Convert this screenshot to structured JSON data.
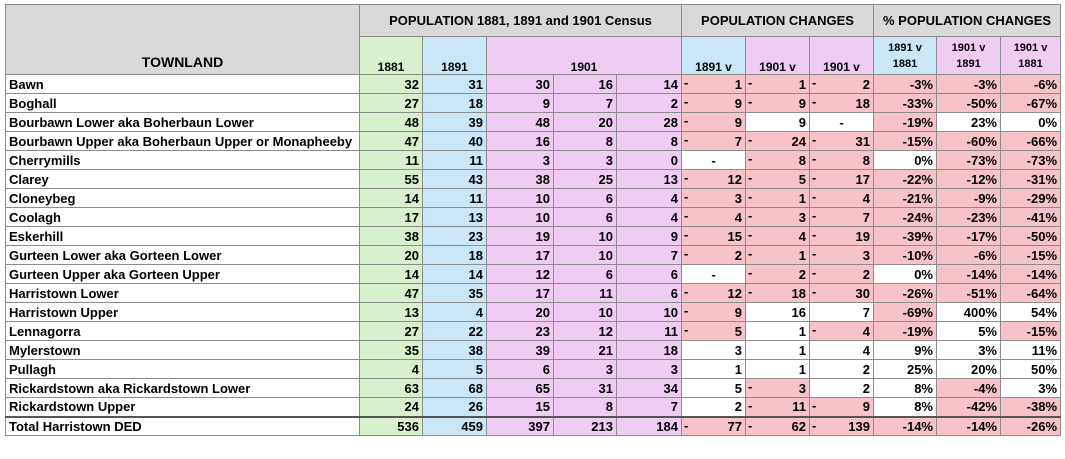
{
  "headers": {
    "townland": "TOWNLAND",
    "population_group": "POPULATION 1881, 1891 and 1901 Census",
    "changes_group": "POPULATION CHANGES",
    "pct_group": "% POPULATION CHANGES",
    "y1881": "1881",
    "y1891": "1891",
    "y1901": "1901",
    "chg1": "1891 v",
    "chg2": "1901 v",
    "chg3": "1901 v",
    "pct1_a": "1891 v",
    "pct1_b": "1881",
    "pct2_a": "1901 v",
    "pct2_b": "1891",
    "pct3_a": "1901 v",
    "pct3_b": "1881"
  },
  "rows": [
    {
      "name": "Bawn",
      "p1881": "32",
      "p1891": "31",
      "a": "30",
      "b": "16",
      "c": "14",
      "c1": "1",
      "c1neg": true,
      "c2": "1",
      "c2neg": true,
      "c3": "2",
      "c3neg": true,
      "q1": "-3%",
      "q1neg": true,
      "q2": "-3%",
      "q2neg": true,
      "q3": "-6%",
      "q3neg": true
    },
    {
      "name": "Boghall",
      "p1881": "27",
      "p1891": "18",
      "a": "9",
      "b": "7",
      "c": "2",
      "c1": "9",
      "c1neg": true,
      "c2": "9",
      "c2neg": true,
      "c3": "18",
      "c3neg": true,
      "q1": "-33%",
      "q1neg": true,
      "q2": "-50%",
      "q2neg": true,
      "q3": "-67%",
      "q3neg": true
    },
    {
      "name": "Bourbawn Lower aka Boherbaun Lower",
      "p1881": "48",
      "p1891": "39",
      "a": "48",
      "b": "20",
      "c": "28",
      "c1": "9",
      "c1neg": true,
      "c2": "9",
      "c2neg": false,
      "c3": "-",
      "c3neg": false,
      "q1": "-19%",
      "q1neg": true,
      "q2": "23%",
      "q2neg": false,
      "q3": "0%",
      "q3neg": false
    },
    {
      "name": "Bourbawn Upper aka Boherbaun Upper or Monapheeby",
      "p1881": "47",
      "p1891": "40",
      "a": "16",
      "b": "8",
      "c": "8",
      "c1": "7",
      "c1neg": true,
      "c2": "24",
      "c2neg": true,
      "c3": "31",
      "c3neg": true,
      "q1": "-15%",
      "q1neg": true,
      "q2": "-60%",
      "q2neg": true,
      "q3": "-66%",
      "q3neg": true
    },
    {
      "name": "Cherrymills",
      "p1881": "11",
      "p1891": "11",
      "a": "3",
      "b": "3",
      "c": "0",
      "c1": "-",
      "c1neg": false,
      "c2": "8",
      "c2neg": true,
      "c3": "8",
      "c3neg": true,
      "q1": "0%",
      "q1neg": false,
      "q2": "-73%",
      "q2neg": true,
      "q3": "-73%",
      "q3neg": true
    },
    {
      "name": "Clarey",
      "p1881": "55",
      "p1891": "43",
      "a": "38",
      "b": "25",
      "c": "13",
      "c1": "12",
      "c1neg": true,
      "c2": "5",
      "c2neg": true,
      "c3": "17",
      "c3neg": true,
      "q1": "-22%",
      "q1neg": true,
      "q2": "-12%",
      "q2neg": true,
      "q3": "-31%",
      "q3neg": true
    },
    {
      "name": "Cloneybeg",
      "p1881": "14",
      "p1891": "11",
      "a": "10",
      "b": "6",
      "c": "4",
      "c1": "3",
      "c1neg": true,
      "c2": "1",
      "c2neg": true,
      "c3": "4",
      "c3neg": true,
      "q1": "-21%",
      "q1neg": true,
      "q2": "-9%",
      "q2neg": true,
      "q3": "-29%",
      "q3neg": true
    },
    {
      "name": "Coolagh",
      "p1881": "17",
      "p1891": "13",
      "a": "10",
      "b": "6",
      "c": "4",
      "c1": "4",
      "c1neg": true,
      "c2": "3",
      "c2neg": true,
      "c3": "7",
      "c3neg": true,
      "q1": "-24%",
      "q1neg": true,
      "q2": "-23%",
      "q2neg": true,
      "q3": "-41%",
      "q3neg": true
    },
    {
      "name": "Eskerhill",
      "p1881": "38",
      "p1891": "23",
      "a": "19",
      "b": "10",
      "c": "9",
      "c1": "15",
      "c1neg": true,
      "c2": "4",
      "c2neg": true,
      "c3": "19",
      "c3neg": true,
      "q1": "-39%",
      "q1neg": true,
      "q2": "-17%",
      "q2neg": true,
      "q3": "-50%",
      "q3neg": true
    },
    {
      "name": "Gurteen Lower aka Gorteen Lower",
      "p1881": "20",
      "p1891": "18",
      "a": "17",
      "b": "10",
      "c": "7",
      "c1": "2",
      "c1neg": true,
      "c2": "1",
      "c2neg": true,
      "c3": "3",
      "c3neg": true,
      "q1": "-10%",
      "q1neg": true,
      "q2": "-6%",
      "q2neg": true,
      "q3": "-15%",
      "q3neg": true
    },
    {
      "name": "Gurteen Upper aka Gorteen Upper",
      "p1881": "14",
      "p1891": "14",
      "a": "12",
      "b": "6",
      "c": "6",
      "c1": "-",
      "c1neg": false,
      "c2": "2",
      "c2neg": true,
      "c3": "2",
      "c3neg": true,
      "q1": "0%",
      "q1neg": false,
      "q2": "-14%",
      "q2neg": true,
      "q3": "-14%",
      "q3neg": true
    },
    {
      "name": "Harristown Lower",
      "p1881": "47",
      "p1891": "35",
      "a": "17",
      "b": "11",
      "c": "6",
      "c1": "12",
      "c1neg": true,
      "c2": "18",
      "c2neg": true,
      "c3": "30",
      "c3neg": true,
      "q1": "-26%",
      "q1neg": true,
      "q2": "-51%",
      "q2neg": true,
      "q3": "-64%",
      "q3neg": true
    },
    {
      "name": "Harristown Upper",
      "p1881": "13",
      "p1891": "4",
      "a": "20",
      "b": "10",
      "c": "10",
      "c1": "9",
      "c1neg": true,
      "c2": "16",
      "c2neg": false,
      "c3": "7",
      "c3neg": false,
      "q1": "-69%",
      "q1neg": true,
      "q2": "400%",
      "q2neg": false,
      "q3": "54%",
      "q3neg": false
    },
    {
      "name": "Lennagorra",
      "p1881": "27",
      "p1891": "22",
      "a": "23",
      "b": "12",
      "c": "11",
      "c1": "5",
      "c1neg": true,
      "c2": "1",
      "c2neg": false,
      "c3": "4",
      "c3neg": true,
      "q1": "-19%",
      "q1neg": true,
      "q2": "5%",
      "q2neg": false,
      "q3": "-15%",
      "q3neg": true
    },
    {
      "name": "Mylerstown",
      "p1881": "35",
      "p1891": "38",
      "a": "39",
      "b": "21",
      "c": "18",
      "c1": "3",
      "c1neg": false,
      "c2": "1",
      "c2neg": false,
      "c3": "4",
      "c3neg": false,
      "q1": "9%",
      "q1neg": false,
      "q2": "3%",
      "q2neg": false,
      "q3": "11%",
      "q3neg": false
    },
    {
      "name": "Pullagh",
      "p1881": "4",
      "p1891": "5",
      "a": "6",
      "b": "3",
      "c": "3",
      "c1": "1",
      "c1neg": false,
      "c2": "1",
      "c2neg": false,
      "c3": "2",
      "c3neg": false,
      "q1": "25%",
      "q1neg": false,
      "q2": "20%",
      "q2neg": false,
      "q3": "50%",
      "q3neg": false
    },
    {
      "name": "Rickardstown aka Rickardstown Lower",
      "p1881": "63",
      "p1891": "68",
      "a": "65",
      "b": "31",
      "c": "34",
      "c1": "5",
      "c1neg": false,
      "c2": "3",
      "c2neg": true,
      "c3": "2",
      "c3neg": false,
      "q1": "8%",
      "q1neg": false,
      "q2": "-4%",
      "q2neg": true,
      "q3": "3%",
      "q3neg": false
    },
    {
      "name": "Rickardstown Upper",
      "p1881": "24",
      "p1891": "26",
      "a": "15",
      "b": "8",
      "c": "7",
      "c1": "2",
      "c1neg": false,
      "c2": "11",
      "c2neg": true,
      "c3": "9",
      "c3neg": true,
      "q1": "8%",
      "q1neg": false,
      "q2": "-42%",
      "q2neg": true,
      "q3": "-38%",
      "q3neg": true
    }
  ],
  "total": {
    "name": "Total Harristown DED",
    "p1881": "536",
    "p1891": "459",
    "a": "397",
    "b": "213",
    "c": "184",
    "c1": "77",
    "c2": "62",
    "c3": "139",
    "q1": "-14%",
    "q2": "-14%",
    "q3": "-26%"
  },
  "colors": {
    "green": "#d8f0cc",
    "blue": "#c9e7f7",
    "purple": "#efcdf3",
    "pink": "#f7c3c9",
    "header": "#d9d9d9"
  }
}
